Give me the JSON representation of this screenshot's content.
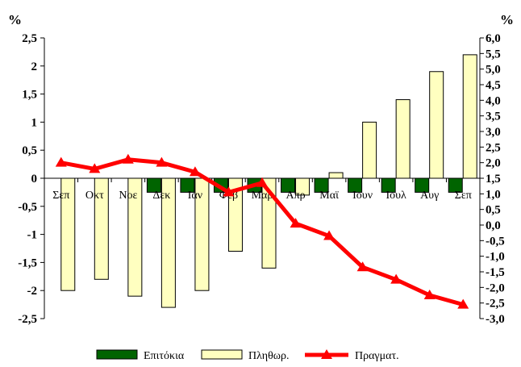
{
  "chart_data": {
    "type": "bar",
    "units": {
      "left": "%",
      "right": "%"
    },
    "categories": [
      "Σεπ",
      "Οκτ",
      "Νοε",
      "Δεκ",
      "Ιαν",
      "Φεβ",
      "Μαρ",
      "Απρ",
      "Μαϊ",
      "Ιουν",
      "Ιουλ",
      "Αυγ",
      "Σεπ"
    ],
    "series": [
      {
        "name": "Επιτόκια",
        "axis": "left",
        "kind": "bar",
        "color": "#006400",
        "values": [
          0,
          0,
          0,
          -0.25,
          -0.25,
          -0.25,
          -0.25,
          -0.25,
          -0.25,
          -0.25,
          -0.25,
          -0.25,
          -0.25
        ]
      },
      {
        "name": "Πληθωρ.",
        "axis": "left",
        "kind": "bar",
        "color": "#FFFFC0",
        "values": [
          -2.0,
          -1.8,
          -2.1,
          -2.3,
          -2.0,
          -1.3,
          -1.6,
          -0.3,
          0.1,
          1.0,
          1.4,
          1.9,
          2.2
        ]
      },
      {
        "name": "Πραγματ.",
        "axis": "right",
        "kind": "line",
        "color": "#FF0000",
        "values": [
          2.0,
          1.8,
          2.1,
          2.0,
          1.7,
          1.05,
          1.35,
          0.05,
          -0.35,
          -1.35,
          -1.75,
          -2.25,
          -2.55
        ]
      }
    ],
    "ylim_left": [
      -2.5,
      2.5
    ],
    "yticks_left": [
      "2,5",
      "2",
      "1,5",
      "1",
      "0,5",
      "0",
      "-0,5",
      "-1",
      "-1,5",
      "-2",
      "-2,5"
    ],
    "ylim_right": [
      -3.0,
      6.0
    ],
    "yticks_right": [
      "6,0",
      "5,5",
      "5,0",
      "4,5",
      "4,0",
      "3,5",
      "3,0",
      "2,5",
      "2,0",
      "1,5",
      "1,0",
      "0,5",
      "0,0",
      "-0,5",
      "-1,0",
      "-1,5",
      "-2,0",
      "-2,5",
      "-3,0"
    ],
    "grid": false,
    "legend_position": "bottom"
  }
}
